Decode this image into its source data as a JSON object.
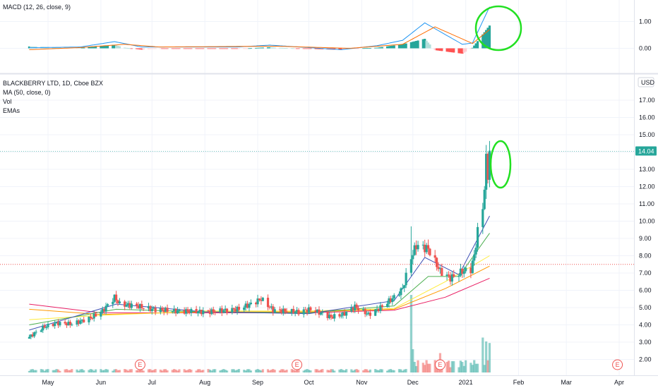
{
  "macd_legend": "MACD (12, 26, close, 9)",
  "main_legend": {
    "symbol": "BLACKBERRY LTD, 1D, Cboe BZX",
    "ma": "MA (50, close, 0)",
    "vol": "Vol",
    "emas": "EMAs"
  },
  "currency": "USD",
  "last_price": "14.04",
  "earnings_marker": "E",
  "colors": {
    "up": "#26a69a",
    "down": "#ef5350",
    "highlight": "#22e022",
    "price_label": "#26a69a"
  },
  "chart_data": [
    {
      "type": "candlestick",
      "title": "BLACKBERRY LTD, 1D, Cboe BZX",
      "x_ticks": [
        "May",
        "Jun",
        "Jul",
        "Aug",
        "Sep",
        "Oct",
        "Nov",
        "Dec",
        "2021",
        "Feb",
        "Mar",
        "Apr"
      ],
      "y_ticks": [
        "2.00",
        "3.00",
        "4.00",
        "5.00",
        "6.00",
        "7.00",
        "8.00",
        "9.00",
        "10.00",
        "11.00",
        "12.00",
        "13.00",
        "14.00",
        "15.00",
        "16.00",
        "17.00"
      ],
      "ylim": [
        1.5,
        17.6
      ],
      "close_anchors": [
        [
          "2020-04-20",
          3.3
        ],
        [
          "2020-04-28",
          3.85
        ],
        [
          "2020-05-06",
          4.1
        ],
        [
          "2020-05-15",
          4.05
        ],
        [
          "2020-05-26",
          4.4
        ],
        [
          "2020-06-02",
          4.8
        ],
        [
          "2020-06-09",
          5.6
        ],
        [
          "2020-06-12",
          5.2
        ],
        [
          "2020-06-22",
          5.1
        ],
        [
          "2020-07-01",
          4.9
        ],
        [
          "2020-07-15",
          4.8
        ],
        [
          "2020-08-03",
          4.75
        ],
        [
          "2020-08-20",
          4.9
        ],
        [
          "2020-08-28",
          5.2
        ],
        [
          "2020-09-03",
          5.5
        ],
        [
          "2020-09-10",
          4.85
        ],
        [
          "2020-09-25",
          4.75
        ],
        [
          "2020-10-02",
          4.9
        ],
        [
          "2020-10-14",
          4.45
        ],
        [
          "2020-10-21",
          4.6
        ],
        [
          "2020-10-28",
          5.05
        ],
        [
          "2020-11-05",
          4.6
        ],
        [
          "2020-11-12",
          5.0
        ],
        [
          "2020-11-20",
          5.6
        ],
        [
          "2020-11-25",
          6.1
        ],
        [
          "2020-11-30",
          7.9
        ],
        [
          "2020-12-03",
          8.6
        ],
        [
          "2020-12-10",
          8.4
        ],
        [
          "2020-12-17",
          7.1
        ],
        [
          "2020-12-23",
          6.7
        ],
        [
          "2020-12-30",
          7.1
        ],
        [
          "2021-01-04",
          7.2
        ],
        [
          "2021-01-06",
          8.0
        ],
        [
          "2021-01-08",
          9.4
        ],
        [
          "2021-01-11",
          10.8
        ],
        [
          "2021-01-12",
          12.0
        ],
        [
          "2021-01-13",
          13.5
        ],
        [
          "2021-01-14",
          12.7
        ],
        [
          "2021-01-15",
          14.04
        ]
      ],
      "moving_averages": [
        {
          "color": "#e91e63",
          "name": "",
          "points": [
            [
              "2020-04-20",
              5.2
            ],
            [
              "2020-06-01",
              4.7
            ],
            [
              "2020-08-01",
              4.7
            ],
            [
              "2020-10-01",
              4.7
            ],
            [
              "2020-11-20",
              4.85
            ],
            [
              "2020-12-20",
              5.6
            ],
            [
              "2021-01-15",
              6.7
            ]
          ]
        },
        {
          "color": "#ff9800",
          "name": "",
          "points": [
            [
              "2020-04-20",
              4.9
            ],
            [
              "2020-06-01",
              4.6
            ],
            [
              "2020-08-01",
              4.75
            ],
            [
              "2020-10-01",
              4.75
            ],
            [
              "2020-11-20",
              4.9
            ],
            [
              "2020-12-20",
              6.1
            ],
            [
              "2021-01-15",
              7.4
            ]
          ]
        },
        {
          "color": "#ffeb3b",
          "name": "",
          "points": [
            [
              "2020-04-20",
              4.3
            ],
            [
              "2020-06-01",
              4.55
            ],
            [
              "2020-08-01",
              4.8
            ],
            [
              "2020-10-01",
              4.8
            ],
            [
              "2020-11-20",
              4.95
            ],
            [
              "2020-12-20",
              6.5
            ],
            [
              "2021-01-15",
              8.0
            ]
          ]
        },
        {
          "color": "#4caf50",
          "name": "",
          "points": [
            [
              "2020-04-20",
              4.0
            ],
            [
              "2020-06-10",
              4.9
            ],
            [
              "2020-08-01",
              4.75
            ],
            [
              "2020-10-01",
              4.7
            ],
            [
              "2020-11-20",
              5.1
            ],
            [
              "2020-12-10",
              6.8
            ],
            [
              "2020-12-28",
              6.8
            ],
            [
              "2021-01-15",
              9.3
            ]
          ]
        },
        {
          "color": "#3f51b5",
          "name": "",
          "points": [
            [
              "2020-04-20",
              3.7
            ],
            [
              "2020-06-10",
              5.2
            ],
            [
              "2020-08-01",
              4.75
            ],
            [
              "2020-10-01",
              4.65
            ],
            [
              "2020-11-20",
              5.4
            ],
            [
              "2020-12-08",
              7.9
            ],
            [
              "2020-12-28",
              6.9
            ],
            [
              "2021-01-15",
              10.3
            ]
          ]
        }
      ],
      "volume_spikes": [
        [
          "2020-11-30",
          1.0
        ],
        [
          "2020-12-01",
          0.3
        ],
        [
          "2020-12-17",
          0.25
        ],
        [
          "2021-01-11",
          0.45
        ],
        [
          "2021-01-13",
          0.4
        ],
        [
          "2021-01-15",
          0.38
        ]
      ],
      "earnings_dates": [
        "2020-06-24",
        "2020-09-24",
        "2020-12-17",
        "2021-03-31"
      ],
      "horizontal_line": 7.5
    },
    {
      "type": "bar",
      "title": "MACD (12, 26, close, 9)",
      "y_ticks": [
        "0.00",
        "1.00"
      ],
      "ylim": [
        -0.75,
        1.6
      ],
      "macd_anchors": [
        [
          "2020-04-20",
          0.02
        ],
        [
          "2020-05-20",
          0.05
        ],
        [
          "2020-06-09",
          0.25
        ],
        [
          "2020-06-25",
          0.05
        ],
        [
          "2020-08-20",
          0.05
        ],
        [
          "2020-09-08",
          0.12
        ],
        [
          "2020-10-20",
          -0.05
        ],
        [
          "2020-11-10",
          0.1
        ],
        [
          "2020-11-25",
          0.3
        ],
        [
          "2020-12-08",
          0.95
        ],
        [
          "2020-12-30",
          0.15
        ],
        [
          "2021-01-05",
          0.2
        ],
        [
          "2021-01-15",
          1.55
        ]
      ],
      "signal_anchors": [
        [
          "2020-04-20",
          -0.05
        ],
        [
          "2020-05-20",
          0.03
        ],
        [
          "2020-06-15",
          0.15
        ],
        [
          "2020-07-05",
          0.05
        ],
        [
          "2020-09-12",
          0.08
        ],
        [
          "2020-10-25",
          0.0
        ],
        [
          "2020-11-25",
          0.15
        ],
        [
          "2020-12-14",
          0.8
        ],
        [
          "2021-01-05",
          0.18
        ],
        [
          "2021-01-15",
          0.7
        ]
      ]
    }
  ]
}
